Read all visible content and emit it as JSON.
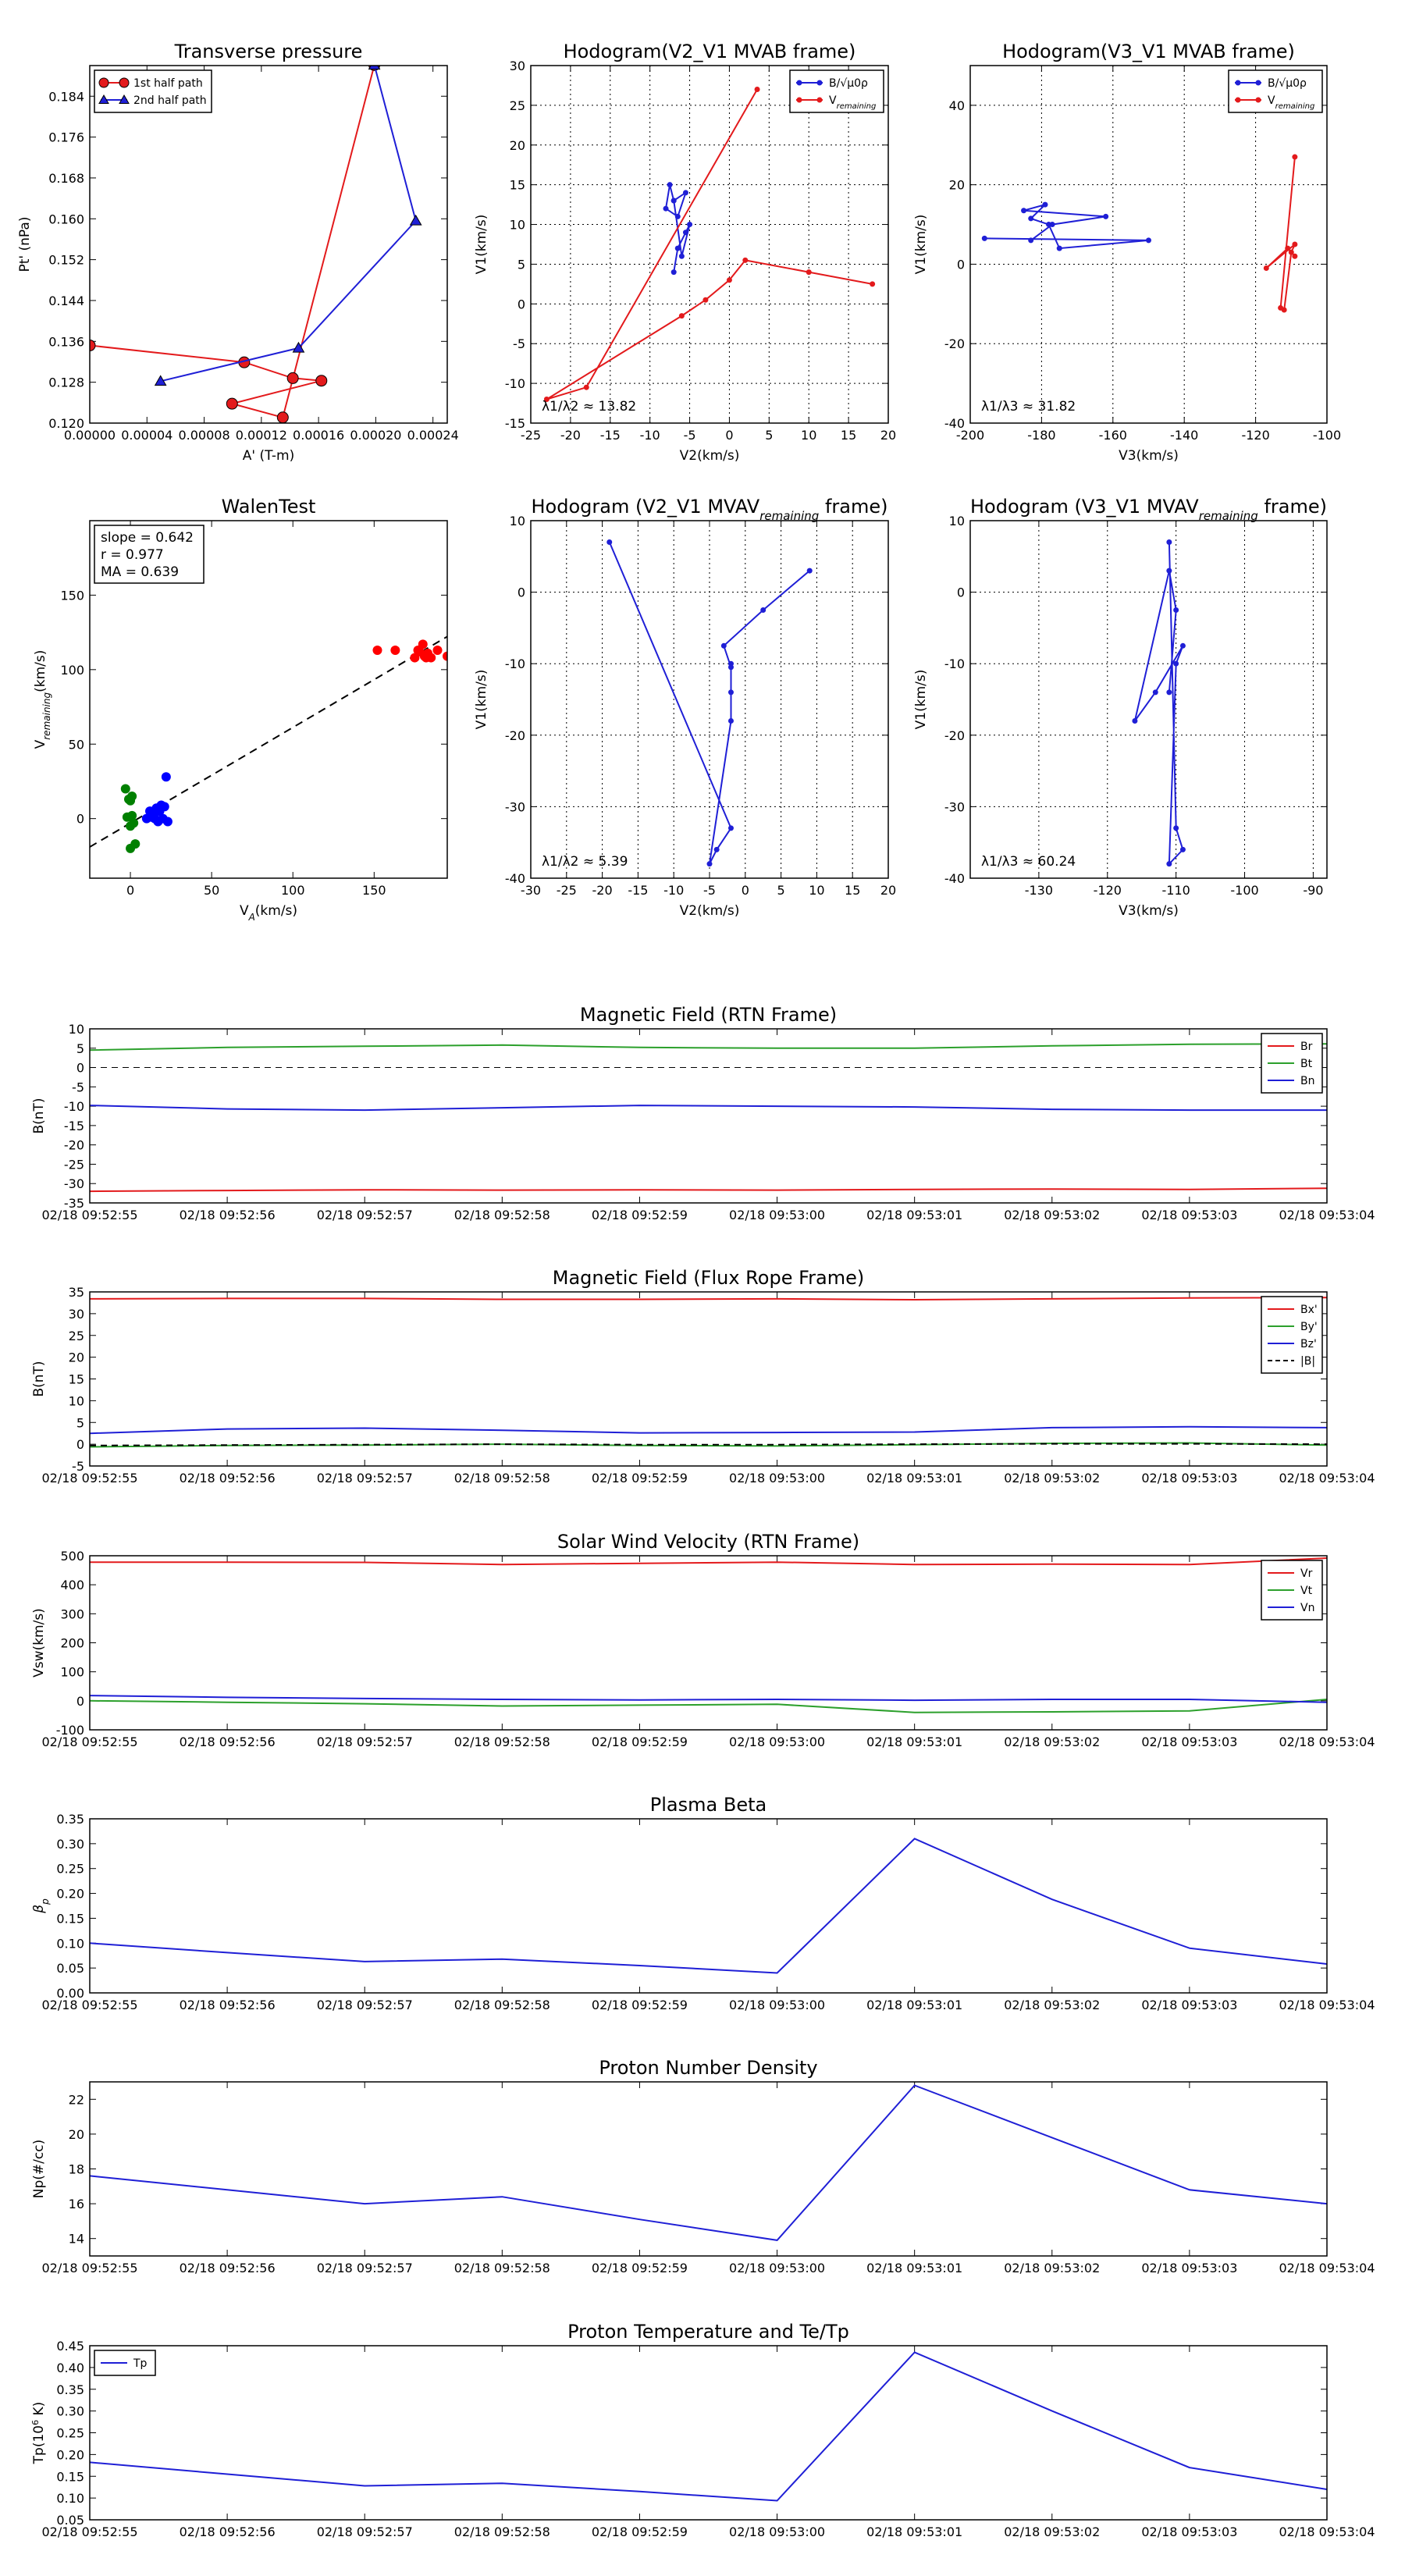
{
  "chart_data": [
    {
      "id": "transverse_pressure",
      "type": "scatter",
      "title": "Transverse pressure",
      "xlabel": "A' (T-m)",
      "ylabel": "Pt' (nPa)",
      "xlim": [
        0,
        0.00025
      ],
      "ylim": [
        0.12,
        0.19
      ],
      "xticks": [
        0,
        4e-05,
        8e-05,
        0.00012,
        0.00016,
        0.0002,
        0.00024
      ],
      "xtick_labels": [
        "0.00000",
        "0.00004",
        "0.00008",
        "0.00012",
        "0.00016",
        "0.00020",
        "0.00024"
      ],
      "yticks": [
        0.12,
        0.128,
        0.136,
        0.144,
        0.152,
        0.16,
        0.168,
        0.176,
        0.184
      ],
      "ytick_labels": [
        "0.120",
        "0.128",
        "0.136",
        "0.144",
        "0.152",
        "0.160",
        "0.168",
        "0.176",
        "0.184"
      ],
      "legend_pos": "top-left",
      "series": [
        {
          "name": "1st half path",
          "color": "#e31a1c",
          "marker": "circle",
          "x": [
            0.0,
            0.000108,
            0.000142,
            0.000162,
            9.95e-05,
            0.000135,
            0.000199
          ],
          "y": [
            0.1352,
            0.1319,
            0.1288,
            0.1283,
            0.1238,
            0.1211,
            0.1901
          ]
        },
        {
          "name": "2nd half path",
          "color": "#1f1fd6",
          "marker": "triangle",
          "x": [
            0.000199,
            0.000228,
            0.000146,
            4.95e-05
          ],
          "y": [
            0.1901,
            0.1596,
            0.1347,
            0.1282
          ]
        }
      ]
    },
    {
      "id": "hodogram_v2v1_mvab",
      "type": "line",
      "title": "Hodogram(V2_V1 MVAB frame)",
      "xlabel": "V2(km/s)",
      "ylabel": "V1(km/s)",
      "xlim": [
        -25,
        20
      ],
      "ylim": [
        -15,
        30
      ],
      "xticks": [
        -25,
        -20,
        -15,
        -10,
        -5,
        0,
        5,
        10,
        15,
        20
      ],
      "yticks": [
        -15,
        -10,
        -5,
        0,
        5,
        10,
        15,
        20,
        25,
        30
      ],
      "annotation": "λ1/λ2 ≈ 13.82",
      "legend_pos": "top-right",
      "series": [
        {
          "name": "B/√μ0ρ",
          "color": "#1f1fd6",
          "x": [
            -7,
            -6.5,
            -5.5,
            -5,
            -6,
            -7,
            -7.5,
            -8,
            -6.5,
            -5.5,
            -7
          ],
          "y": [
            4,
            7,
            9,
            10,
            6,
            13,
            15,
            12,
            11,
            14,
            13
          ]
        },
        {
          "name": "Vremaining",
          "color": "#e31a1c",
          "x": [
            3.5,
            -18,
            -23,
            -6,
            -3,
            0,
            2,
            10,
            18
          ],
          "y": [
            27,
            -10.5,
            -12,
            -1.5,
            0.5,
            3,
            5.5,
            4,
            2.5
          ]
        }
      ]
    },
    {
      "id": "hodogram_v3v1_mvab",
      "type": "line",
      "title": "Hodogram(V3_V1 MVAB frame)",
      "xlabel": "V3(km/s)",
      "ylabel": "V1(km/s)",
      "xlim": [
        -200,
        -100
      ],
      "ylim": [
        -40,
        50
      ],
      "xticks": [
        -200,
        -180,
        -160,
        -140,
        -120,
        -100
      ],
      "yticks": [
        -40,
        -20,
        0,
        20,
        40
      ],
      "annotation": "λ1/λ3 ≈ 31.82",
      "legend_pos": "top-right",
      "series": [
        {
          "name": "B/√μ0ρ",
          "color": "#1f1fd6",
          "x": [
            -196,
            -150,
            -175,
            -178,
            -183,
            -179,
            -185,
            -162,
            -177,
            -183
          ],
          "y": [
            6.5,
            6,
            4,
            10,
            11.5,
            15,
            13.5,
            12,
            10,
            6
          ]
        },
        {
          "name": "Vremaining",
          "color": "#e31a1c",
          "x": [
            -109,
            -113,
            -112,
            -110,
            -109,
            -117,
            -111,
            -109
          ],
          "y": [
            27,
            -11,
            -11.5,
            3,
            5,
            -1,
            4,
            2
          ]
        }
      ]
    },
    {
      "id": "walen_test",
      "type": "scatter",
      "title": "WalenTest",
      "xlabel": "V_A(km/s)",
      "ylabel": "V_remaining(km/s)",
      "xlim": [
        -25,
        195
      ],
      "ylim": [
        -40,
        200
      ],
      "xticks": [
        0,
        50,
        100,
        150
      ],
      "yticks": [
        0,
        50,
        100,
        150
      ],
      "annotation_lines": [
        "slope = 0.642",
        "r = 0.977",
        "MA = 0.639"
      ],
      "fit": {
        "slope": 0.642,
        "intercept": -3
      },
      "series": [
        {
          "name": "",
          "color": "#ff0000",
          "x": [
            152,
            163,
            175,
            177,
            178,
            180,
            181,
            182,
            183,
            185,
            189,
            195
          ],
          "y": [
            113,
            113,
            108,
            113,
            112,
            117,
            109,
            108,
            111,
            108,
            113,
            109
          ]
        },
        {
          "name": "",
          "color": "#008000",
          "x": [
            -3,
            -1,
            0,
            1,
            2,
            3,
            -2,
            0,
            1,
            0
          ],
          "y": [
            20,
            13,
            12,
            2,
            -3,
            -17,
            1,
            -5,
            15,
            -20
          ]
        },
        {
          "name": "",
          "color": "#0000ff",
          "x": [
            10,
            12,
            14,
            15,
            16,
            17,
            18,
            19,
            20,
            21,
            22,
            23,
            13
          ],
          "y": [
            0,
            5,
            3,
            0,
            7,
            -2,
            5,
            9,
            0,
            8,
            28,
            -2,
            1
          ]
        }
      ]
    },
    {
      "id": "hodogram_v2v1_mvav",
      "type": "line",
      "title": "Hodogram (V2_V1 MVAV_remaining frame)",
      "xlabel": "V2(km/s)",
      "ylabel": "V1(km/s)",
      "xlim": [
        -30,
        20
      ],
      "ylim": [
        -40,
        10
      ],
      "xticks": [
        -30,
        -25,
        -20,
        -15,
        -10,
        -5,
        0,
        5,
        10,
        15,
        20
      ],
      "yticks": [
        -40,
        -30,
        -20,
        -10,
        0,
        10
      ],
      "annotation": "λ1/λ2 ≈ 5.39",
      "series": [
        {
          "name": "",
          "color": "#1f1fd6",
          "x": [
            -19,
            -2,
            -4,
            -5,
            -2,
            -2,
            -2,
            -2,
            -3,
            2.5,
            9
          ],
          "y": [
            7,
            -33,
            -36,
            -38,
            -18,
            -14,
            -10,
            -10.5,
            -7.5,
            -2.5,
            3
          ]
        }
      ]
    },
    {
      "id": "hodogram_v3v1_mvav",
      "type": "line",
      "title": "Hodogram (V3_V1 MVAV_remaining frame)",
      "xlabel": "V3(km/s)",
      "ylabel": "V1(km/s)",
      "xlim": [
        -140,
        -88
      ],
      "ylim": [
        -40,
        10
      ],
      "xticks": [
        -130,
        -120,
        -110,
        -100,
        -90
      ],
      "yticks": [
        -40,
        -30,
        -20,
        -10,
        0,
        10
      ],
      "annotation": "λ1/λ3 ≈ 60.24",
      "series": [
        {
          "name": "",
          "color": "#1f1fd6",
          "x": [
            -111,
            -110,
            -109,
            -111,
            -110,
            -109,
            -113,
            -116,
            -111,
            -110,
            -111
          ],
          "y": [
            7,
            -33,
            -36,
            -38,
            -10,
            -7.5,
            -14,
            -18,
            3,
            -2.5,
            -14
          ]
        }
      ]
    },
    {
      "id": "mag_rtn",
      "type": "line",
      "title": "Magnetic Field (RTN Frame)",
      "xlabel": "",
      "ylabel": "B(nT)",
      "x": [
        0,
        1,
        2,
        3,
        4,
        5,
        6,
        7,
        8,
        9
      ],
      "xtick_labels": [
        "02/18 09:52:55",
        "02/18 09:52:56",
        "02/18 09:52:57",
        "02/18 09:52:58",
        "02/18 09:52:59",
        "02/18 09:53:00",
        "02/18 09:53:01",
        "02/18 09:53:02",
        "02/18 09:53:03",
        "02/18 09:53:04"
      ],
      "ylim": [
        -35,
        10
      ],
      "yticks": [
        -35,
        -30,
        -25,
        -20,
        -15,
        -10,
        -5,
        0,
        5,
        10
      ],
      "zero_line": true,
      "legend_pos": "top-right",
      "series": [
        {
          "name": "Br",
          "color": "#e31a1c",
          "values": [
            -32,
            -31.8,
            -31.6,
            -31.7,
            -31.6,
            -31.7,
            -31.5,
            -31.4,
            -31.5,
            -31.2
          ]
        },
        {
          "name": "Bt",
          "color": "#2ca02c",
          "values": [
            4.5,
            5.2,
            5.5,
            5.8,
            5.2,
            5.0,
            5.0,
            5.6,
            6.0,
            6.1
          ]
        },
        {
          "name": "Bn",
          "color": "#1f1fd6",
          "values": [
            -9.8,
            -10.7,
            -11.0,
            -10.4,
            -9.8,
            -10.0,
            -10.2,
            -10.8,
            -11.0,
            -11.0
          ]
        }
      ]
    },
    {
      "id": "mag_fr",
      "type": "line",
      "title": "Magnetic Field (Flux Rope Frame)",
      "xlabel": "",
      "ylabel": "B(nT)",
      "x": [
        0,
        1,
        2,
        3,
        4,
        5,
        6,
        7,
        8,
        9
      ],
      "xtick_labels": [
        "02/18 09:52:55",
        "02/18 09:52:56",
        "02/18 09:52:57",
        "02/18 09:52:58",
        "02/18 09:52:59",
        "02/18 09:53:00",
        "02/18 09:53:01",
        "02/18 09:53:02",
        "02/18 09:53:03",
        "02/18 09:53:04"
      ],
      "ylim": [
        -5,
        35
      ],
      "yticks": [
        -5,
        0,
        5,
        10,
        15,
        20,
        25,
        30,
        35
      ],
      "legend_pos": "top-right",
      "series": [
        {
          "name": "Bx'",
          "color": "#e31a1c",
          "values": [
            33.4,
            33.5,
            33.5,
            33.3,
            33.3,
            33.4,
            33.2,
            33.4,
            33.6,
            33.7
          ]
        },
        {
          "name": "By'",
          "color": "#2ca02c",
          "values": [
            -0.6,
            -0.3,
            -0.2,
            0.0,
            -0.3,
            -0.4,
            -0.1,
            0.2,
            0.3,
            -0.2
          ]
        },
        {
          "name": "Bz'",
          "color": "#1f1fd6",
          "values": [
            2.5,
            3.5,
            3.7,
            3.2,
            2.6,
            2.7,
            2.8,
            3.8,
            4.0,
            3.8
          ]
        },
        {
          "name": "|B|",
          "color": "#000000",
          "dashed": true,
          "values": [
            -0.3,
            -0.2,
            -0.1,
            0.0,
            -0.1,
            -0.1,
            0.0,
            0.1,
            0.1,
            0.0
          ]
        }
      ]
    },
    {
      "id": "sw_velocity",
      "type": "line",
      "title": "Solar Wind Velocity (RTN Frame)",
      "xlabel": "",
      "ylabel": "Vsw(km/s)",
      "x": [
        0,
        1,
        2,
        3,
        4,
        5,
        6,
        7,
        8,
        9
      ],
      "xtick_labels": [
        "02/18 09:52:55",
        "02/18 09:52:56",
        "02/18 09:52:57",
        "02/18 09:52:58",
        "02/18 09:52:59",
        "02/18 09:53:00",
        "02/18 09:53:01",
        "02/18 09:53:02",
        "02/18 09:53:03",
        "02/18 09:53:04"
      ],
      "ylim": [
        -100,
        500
      ],
      "yticks": [
        -100,
        0,
        100,
        200,
        300,
        400,
        500
      ],
      "legend_pos": "top-right",
      "series": [
        {
          "name": "Vr",
          "color": "#e31a1c",
          "values": [
            478,
            478,
            477,
            470,
            474,
            478,
            470,
            471,
            470,
            492
          ]
        },
        {
          "name": "Vt",
          "color": "#2ca02c",
          "values": [
            0,
            -5,
            -10,
            -18,
            -15,
            -12,
            -40,
            -38,
            -35,
            5
          ]
        },
        {
          "name": "Vn",
          "color": "#1f1fd6",
          "values": [
            18,
            12,
            8,
            5,
            3,
            5,
            2,
            5,
            5,
            -5
          ]
        }
      ]
    },
    {
      "id": "plasma_beta",
      "type": "line",
      "title": "Plasma Beta",
      "xlabel": "",
      "ylabel": "βp",
      "x": [
        0,
        1,
        2,
        3,
        4,
        5,
        6,
        7,
        8,
        9
      ],
      "xtick_labels": [
        "02/18 09:52:55",
        "02/18 09:52:56",
        "02/18 09:52:57",
        "02/18 09:52:58",
        "02/18 09:52:59",
        "02/18 09:53:00",
        "02/18 09:53:01",
        "02/18 09:53:02",
        "02/18 09:53:03",
        "02/18 09:53:04"
      ],
      "ylim": [
        0,
        0.35
      ],
      "yticks": [
        0,
        0.05,
        0.1,
        0.15,
        0.2,
        0.25,
        0.3,
        0.35
      ],
      "ytick_labels": [
        "0.00",
        "0.05",
        "0.10",
        "0.15",
        "0.20",
        "0.25",
        "0.30",
        "0.35"
      ],
      "series": [
        {
          "name": "",
          "color": "#1f1fd6",
          "values": [
            0.1,
            0.081,
            0.063,
            0.068,
            0.055,
            0.04,
            0.31,
            0.188,
            0.09,
            0.058
          ]
        }
      ]
    },
    {
      "id": "proton_density",
      "type": "line",
      "title": "Proton Number Density",
      "xlabel": "",
      "ylabel": "Np(#/cc)",
      "x": [
        0,
        1,
        2,
        3,
        4,
        5,
        6,
        7,
        8,
        9
      ],
      "xtick_labels": [
        "02/18 09:52:55",
        "02/18 09:52:56",
        "02/18 09:52:57",
        "02/18 09:52:58",
        "02/18 09:52:59",
        "02/18 09:53:00",
        "02/18 09:53:01",
        "02/18 09:53:02",
        "02/18 09:53:03",
        "02/18 09:53:04"
      ],
      "ylim": [
        13,
        23
      ],
      "yticks": [
        14,
        16,
        18,
        20,
        22
      ],
      "series": [
        {
          "name": "",
          "color": "#1f1fd6",
          "values": [
            17.6,
            16.8,
            16.0,
            16.4,
            15.1,
            13.9,
            22.8,
            19.8,
            16.8,
            16.0
          ]
        }
      ]
    },
    {
      "id": "proton_temp",
      "type": "line",
      "title": "Proton Temperature and Te/Tp",
      "xlabel": "",
      "ylabel": "Tp(10^6 K)",
      "x": [
        0,
        1,
        2,
        3,
        4,
        5,
        6,
        7,
        8,
        9
      ],
      "xtick_labels": [
        "02/18 09:52:55",
        "02/18 09:52:56",
        "02/18 09:52:57",
        "02/18 09:52:58",
        "02/18 09:52:59",
        "02/18 09:53:00",
        "02/18 09:53:01",
        "02/18 09:53:02",
        "02/18 09:53:03",
        "02/18 09:53:04"
      ],
      "ylim": [
        0.05,
        0.45
      ],
      "yticks": [
        0.05,
        0.1,
        0.15,
        0.2,
        0.25,
        0.3,
        0.35,
        0.4,
        0.45
      ],
      "ytick_labels": [
        "0.05",
        "0.10",
        "0.15",
        "0.20",
        "0.25",
        "0.30",
        "0.35",
        "0.40",
        "0.45"
      ],
      "legend_pos": "top-left",
      "series": [
        {
          "name": "Tp",
          "color": "#1f1fd6",
          "values": [
            0.182,
            0.155,
            0.128,
            0.134,
            0.115,
            0.094,
            0.435,
            0.3,
            0.17,
            0.12
          ]
        }
      ]
    }
  ]
}
